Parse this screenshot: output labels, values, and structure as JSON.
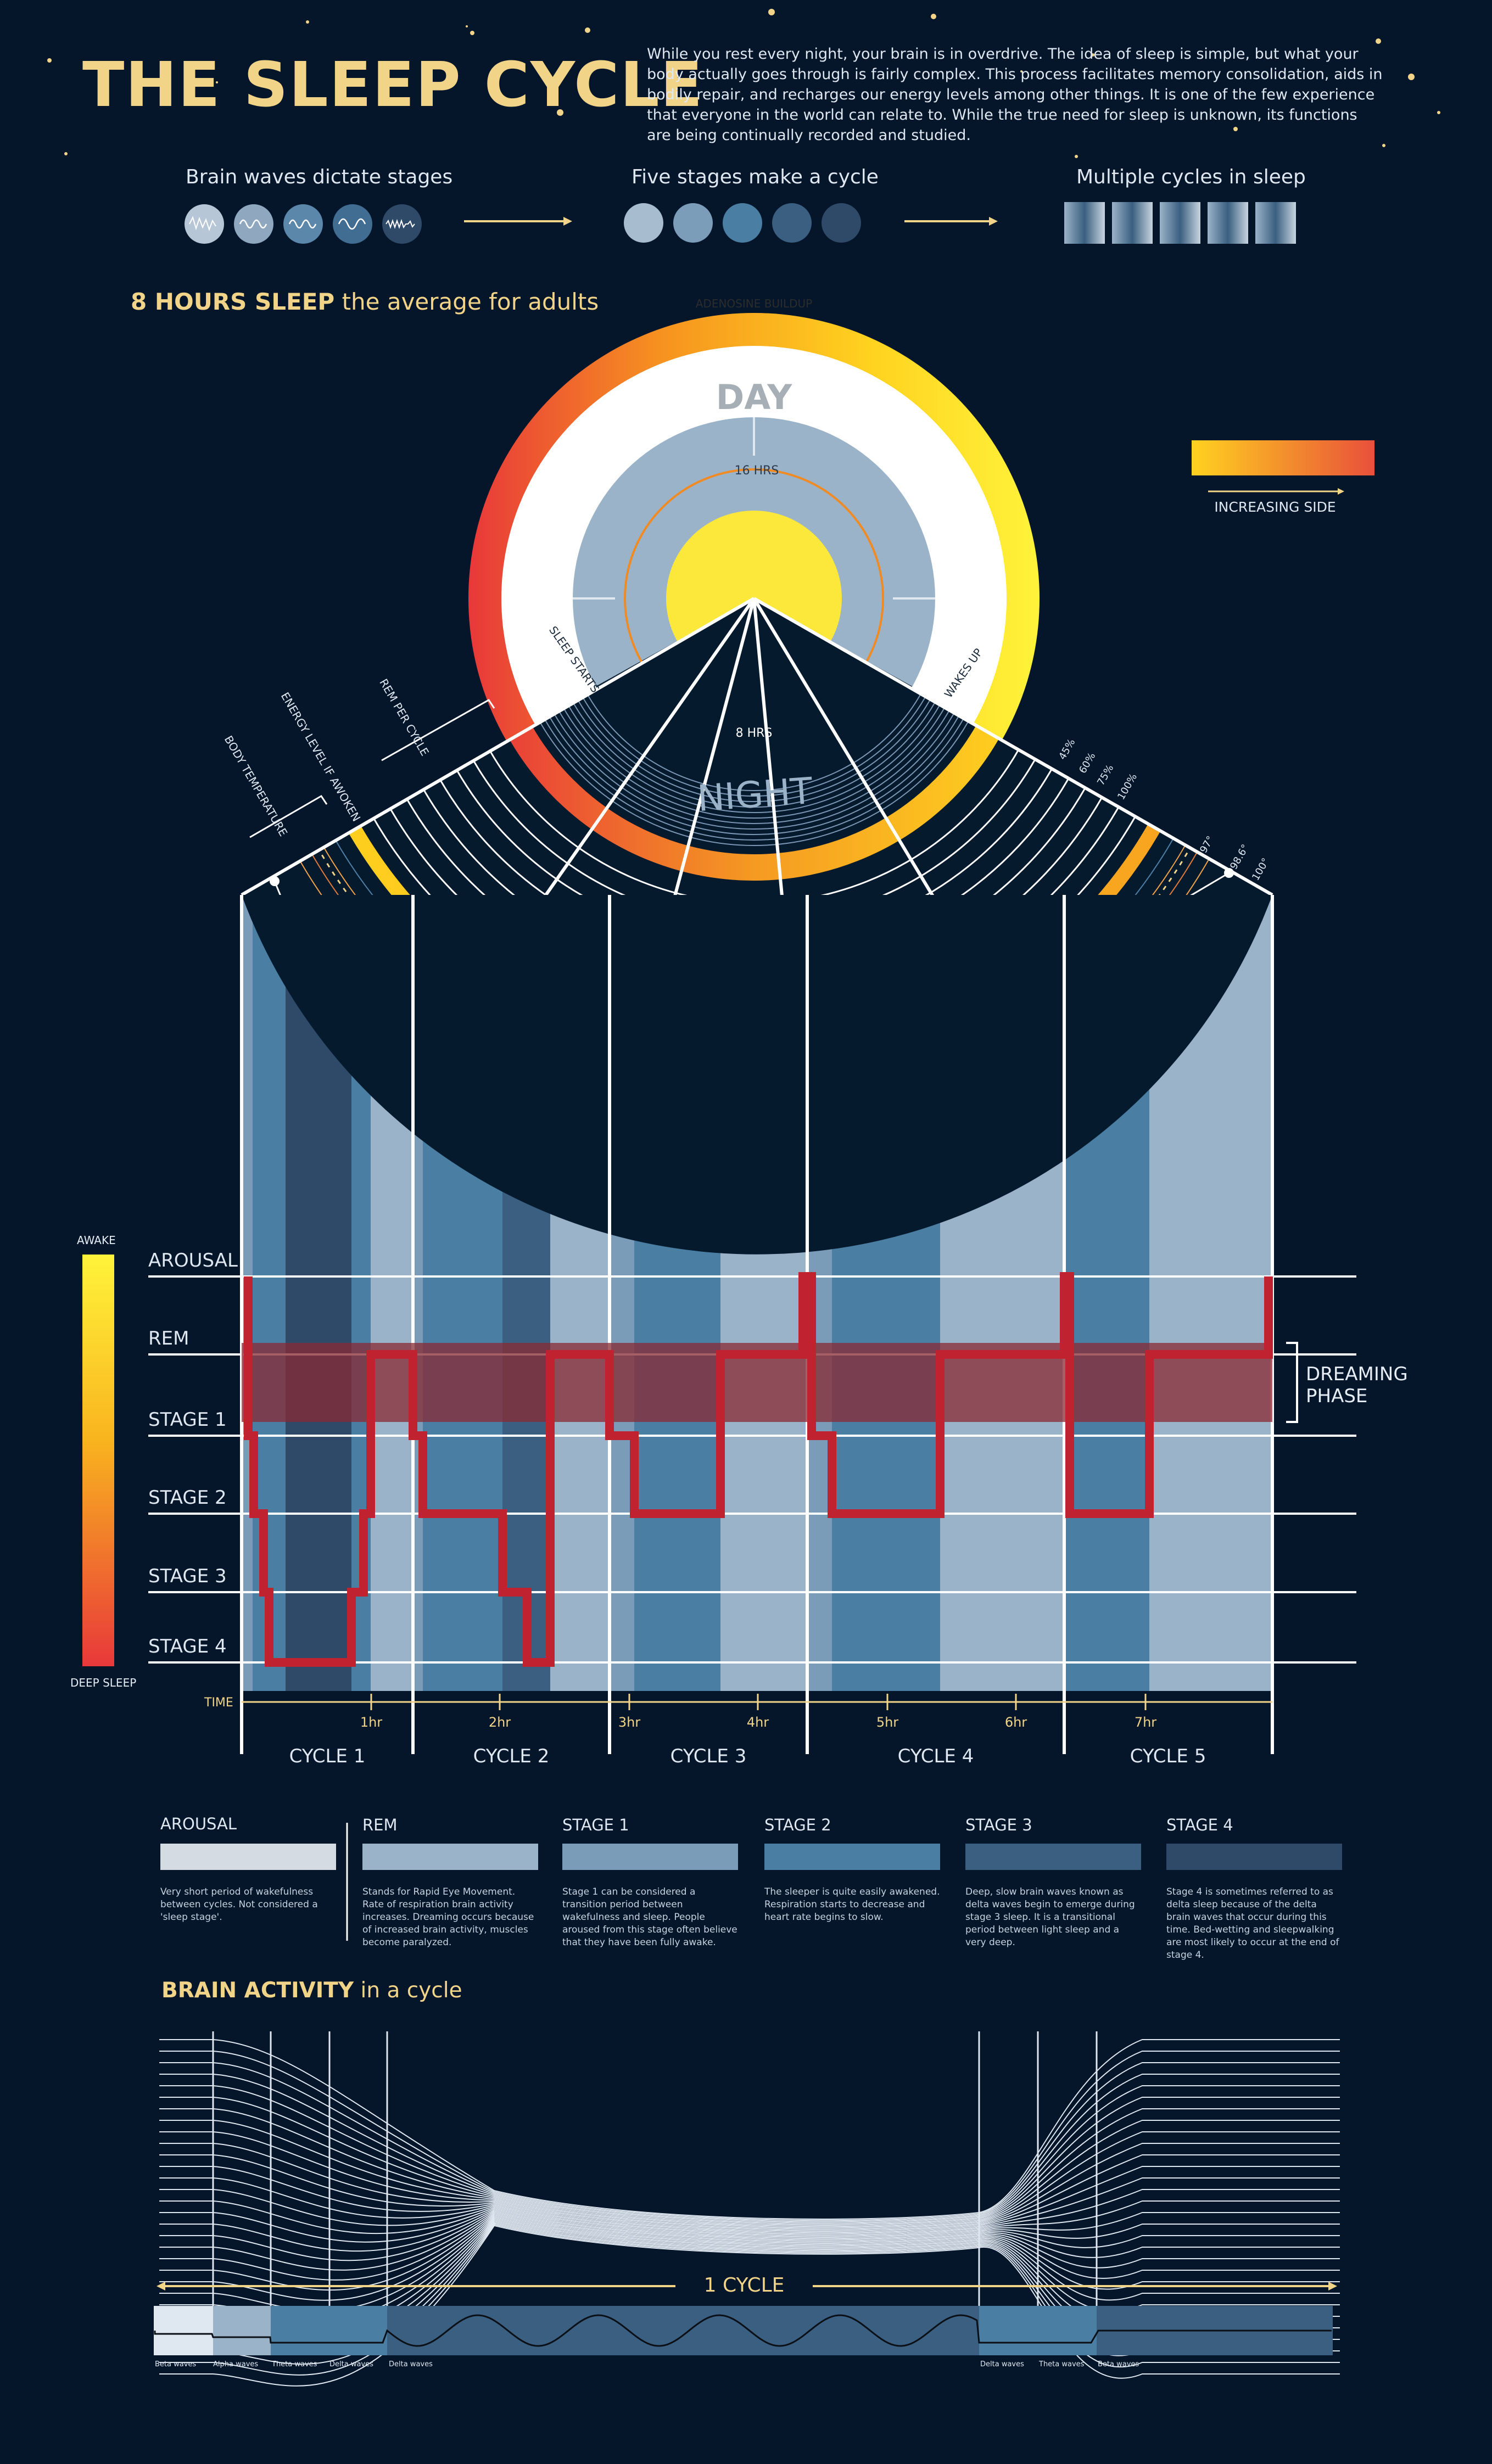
{
  "title": "THE SLEEP CYCLE",
  "intro": "While you rest every night, your brain is in overdrive. The idea of sleep is simple, but what your body actually goes through is fairly complex. This process facilitates memory consolidation, aids in bodily repair, and recharges our energy levels among other things. It is one of the few experience that everyone in the world can relate to. While the true need for sleep is unknown, its functions are being continually recorded and studied.",
  "steps": [
    "Brain waves dictate stages",
    "Five stages make a cycle",
    "Multiple cycles in sleep"
  ],
  "hours_heading": {
    "bold": "8 HOURS SLEEP",
    "rest": "the average for adults"
  },
  "clock": {
    "adenosine": "ADENOSINE BUILDUP",
    "day": "DAY",
    "night": "NIGHT",
    "day_hours": "16 HRS",
    "night_hours": "8 HRS",
    "sleep_starts": "SLEEP STARTS",
    "wakes_up": "WAKES UP",
    "arc_labels": [
      "BODY TEMPERATURE",
      "ENERGY LEVEL IF AWOKEN",
      "REM PER CYCLE"
    ],
    "energy_pcts": [
      "45%",
      "60%",
      "75%",
      "100%"
    ],
    "temps": [
      "97°",
      "98.6°",
      "100°"
    ]
  },
  "increasing_side": {
    "label": "INCREASING SIDE",
    "colors": [
      "#ffd21f",
      "#e8503a"
    ]
  },
  "hypnogram": {
    "stages": [
      "AROUSAL",
      "REM",
      "STAGE 1",
      "STAGE 2",
      "STAGE 3",
      "STAGE 4"
    ],
    "awake_label": "AWAKE",
    "deep_label": "DEEP SLEEP",
    "time_label": "TIME",
    "hour_ticks": [
      "1hr",
      "2hr",
      "3hr",
      "4hr",
      "5hr",
      "6hr",
      "7hr"
    ],
    "cycles": [
      "CYCLE 1",
      "CYCLE 2",
      "CYCLE 3",
      "CYCLE 4",
      "CYCLE 5"
    ],
    "dreaming_phase": "DREAMING PHASE",
    "path_stage_levels": [
      0,
      1,
      3,
      4,
      5,
      4,
      3,
      2,
      1,
      2,
      3,
      4,
      5,
      4,
      3,
      2,
      1,
      2,
      3,
      2,
      1,
      0,
      1,
      2,
      3,
      2,
      1,
      0,
      3,
      1,
      0
    ],
    "colors": {
      "line": "#c0222f",
      "band": "#8a2a33"
    }
  },
  "key": [
    {
      "name": "AROUSAL",
      "desc": "Very short period of wakefulness between cycles. Not considered a 'sleep stage'.",
      "color": "#d4dbe3"
    },
    {
      "name": "REM",
      "desc": "Stands for Rapid Eye Movement. Rate of respiration brain activity increases. Dreaming occurs because of increased brain activity, muscles become paralyzed.",
      "color": "#9bb3c9"
    },
    {
      "name": "STAGE 1",
      "desc": "Stage 1 can be considered a transition period between wakefulness and sleep. People aroused from this stage often believe that they have been fully awake.",
      "color": "#7a9cb8"
    },
    {
      "name": "STAGE 2",
      "desc": "The sleeper is quite easily awakened. Respiration starts to decrease and heart rate begins to slow.",
      "color": "#4a7ea3"
    },
    {
      "name": "STAGE 3",
      "desc": "Deep, slow brain waves known as delta waves begin to emerge during stage 3 sleep. It is a transitional period between light sleep and a very deep.",
      "color": "#3a5f80"
    },
    {
      "name": "STAGE 4",
      "desc": "Stage 4 is sometimes referred to as delta sleep because of the delta brain waves that occur during this time. Bed-wetting and sleepwalking are most likely to occur at the end of stage 4.",
      "color": "#2e4a68"
    }
  ],
  "brain_activity": {
    "heading_bold": "BRAIN ACTIVITY",
    "heading_rest": "in a cycle",
    "cycle_label": "1 CYCLE",
    "wave_labels": [
      "Beta waves",
      "Alpha waves",
      "Theta waves",
      "Delta waves",
      "Delta waves",
      "Delta waves",
      "Theta waves",
      "Beta waves"
    ]
  }
}
